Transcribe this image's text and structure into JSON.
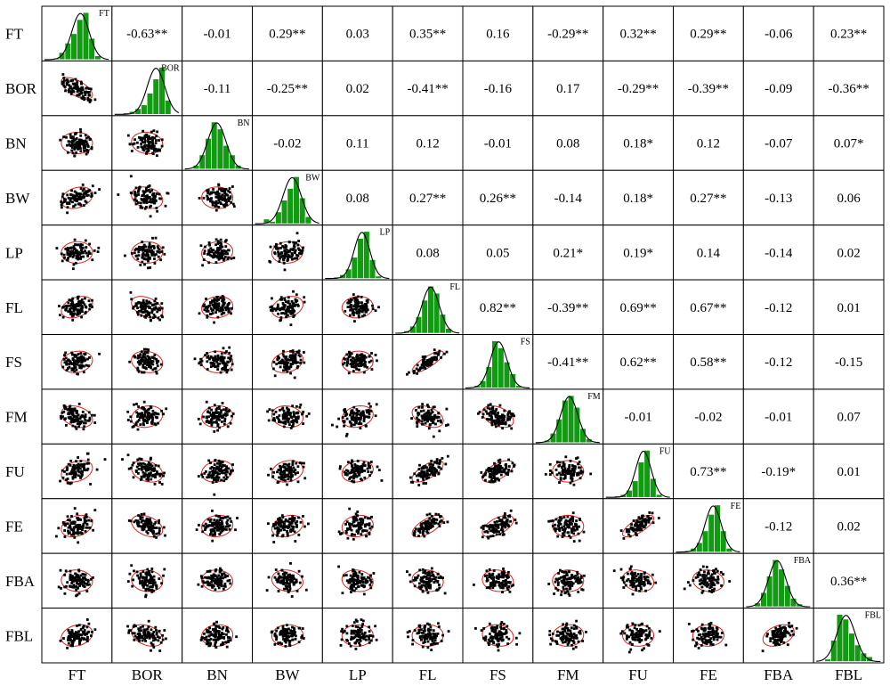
{
  "chart_data": {
    "type": "scatterplot-matrix",
    "variables": [
      "FT",
      "BOR",
      "BN",
      "BW",
      "LP",
      "FL",
      "FS",
      "FM",
      "FU",
      "FE",
      "FBA",
      "FBL"
    ],
    "upper_coefficients": [
      [
        "",
        "-0.63**",
        "-0.01",
        "0.29**",
        "0.03",
        "0.35**",
        "0.16",
        "-0.29**",
        "0.32**",
        "0.29**",
        "-0.06",
        "0.23**"
      ],
      [
        "",
        "",
        "-0.11",
        "-0.25**",
        "0.02",
        "-0.41**",
        "-0.16",
        "0.17",
        "-0.29**",
        "-0.39**",
        "-0.09",
        "-0.36**"
      ],
      [
        "",
        "",
        "",
        "-0.02",
        "0.11",
        "0.12",
        "-0.01",
        "0.08",
        "0.18*",
        "0.12",
        "-0.07",
        "0.07*"
      ],
      [
        "",
        "",
        "",
        "",
        "0.08",
        "0.27**",
        "0.26**",
        "-0.14",
        "0.18*",
        "0.27**",
        "-0.13",
        "0.06"
      ],
      [
        "",
        "",
        "",
        "",
        "",
        "0.08",
        "0.05",
        "0.21*",
        "0.19*",
        "0.14",
        "-0.14",
        "0.02"
      ],
      [
        "",
        "",
        "",
        "",
        "",
        "",
        "0.82**",
        "-0.39**",
        "0.69**",
        "0.67**",
        "-0.12",
        "0.01"
      ],
      [
        "",
        "",
        "",
        "",
        "",
        "",
        "",
        "-0.41**",
        "0.62**",
        "0.58**",
        "-0.12",
        "-0.15"
      ],
      [
        "",
        "",
        "",
        "",
        "",
        "",
        "",
        "",
        "-0.01",
        "-0.02",
        "-0.01",
        "0.07"
      ],
      [
        "",
        "",
        "",
        "",
        "",
        "",
        "",
        "",
        "",
        "0.73**",
        "-0.19*",
        "0.01"
      ],
      [
        "",
        "",
        "",
        "",
        "",
        "",
        "",
        "",
        "",
        "",
        "-0.12",
        "0.02"
      ],
      [
        "",
        "",
        "",
        "",
        "",
        "",
        "",
        "",
        "",
        "",
        "",
        "0.36**"
      ],
      [
        "",
        "",
        "",
        "",
        "",
        "",
        "",
        "",
        "",
        "",
        "",
        ""
      ]
    ],
    "histogram_bins": [
      [
        0.03,
        0.15,
        0.35,
        0.55,
        0.85,
        1.0,
        0.45,
        0.08
      ],
      [
        0.03,
        0.06,
        0.12,
        0.2,
        0.45,
        0.75,
        1.0,
        0.3
      ],
      [
        0.08,
        0.3,
        0.65,
        1.0,
        0.85,
        0.5,
        0.3,
        0.08
      ],
      [
        0.1,
        0.05,
        0.25,
        0.5,
        0.75,
        1.0,
        0.55,
        0.15
      ],
      [
        0.03,
        0.08,
        0.2,
        0.45,
        0.85,
        1.0,
        0.4,
        0.05
      ],
      [
        0.05,
        0.15,
        0.35,
        0.7,
        1.0,
        0.85,
        0.4,
        0.1
      ],
      [
        0.05,
        0.15,
        0.45,
        1.0,
        0.85,
        0.55,
        0.3,
        0.05
      ],
      [
        0.05,
        0.2,
        0.5,
        0.9,
        1.0,
        0.75,
        0.3,
        0.08
      ],
      [
        0.03,
        0.06,
        0.15,
        0.35,
        0.75,
        1.0,
        0.4,
        0.06
      ],
      [
        0.03,
        0.08,
        0.2,
        0.45,
        0.8,
        1.0,
        0.45,
        0.08
      ],
      [
        0.08,
        0.3,
        0.65,
        1.0,
        0.8,
        0.45,
        0.18,
        0.06
      ],
      [
        0.05,
        0.45,
        1.0,
        0.9,
        0.6,
        0.35,
        0.18,
        0.1
      ]
    ],
    "scatter_style": {
      "point_color": "#000000",
      "ellipse_color": "#e02020",
      "bar_color": "#129a12",
      "density_color": "#000000"
    },
    "grid": true
  }
}
